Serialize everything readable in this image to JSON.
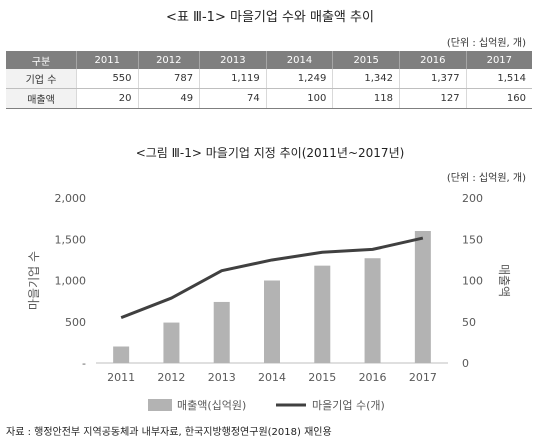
{
  "table": {
    "title": "<표 Ⅲ-1> 마을기업 수와 매출액 추이",
    "unit": "(단위 : 십억원, 개)",
    "headers": [
      "구분",
      "2011",
      "2012",
      "2013",
      "2014",
      "2015",
      "2016",
      "2017"
    ],
    "rows": [
      {
        "label": "기업 수",
        "values": [
          "550",
          "787",
          "1,119",
          "1,249",
          "1,342",
          "1,377",
          "1,514"
        ]
      },
      {
        "label": "매출액",
        "values": [
          "20",
          "49",
          "74",
          "100",
          "118",
          "127",
          "160"
        ]
      }
    ]
  },
  "chart_data": {
    "type": "bar",
    "title": "<그림 Ⅲ-1> 마을기업 지정 추이(2011년~2017년)",
    "unit": "(단위 : 십억원, 개)",
    "categories": [
      "2011",
      "2012",
      "2013",
      "2014",
      "2015",
      "2016",
      "2017"
    ],
    "left_axis": {
      "label": "마을기업 수",
      "range": [
        0,
        2000
      ],
      "ticks": [
        "-",
        "500",
        "1,000",
        "1,500",
        "2,000"
      ]
    },
    "right_axis": {
      "label": "매출액",
      "range": [
        0,
        200
      ],
      "ticks": [
        "0",
        "50",
        "100",
        "150",
        "200"
      ]
    },
    "series": [
      {
        "name": "매출액(십억원)",
        "type": "bar",
        "axis": "right",
        "color": "#b3b3b3",
        "values": [
          20,
          49,
          74,
          100,
          118,
          127,
          160
        ]
      },
      {
        "name": "마을기업 수(개)",
        "type": "line",
        "axis": "left",
        "color": "#404040",
        "values": [
          550,
          787,
          1119,
          1249,
          1342,
          1377,
          1514
        ]
      }
    ],
    "legend_position": "bottom",
    "grid": false
  },
  "source": "자료 : 행정안전부 지역공동체과 내부자료, 한국지방행정연구원(2018) 재인용"
}
